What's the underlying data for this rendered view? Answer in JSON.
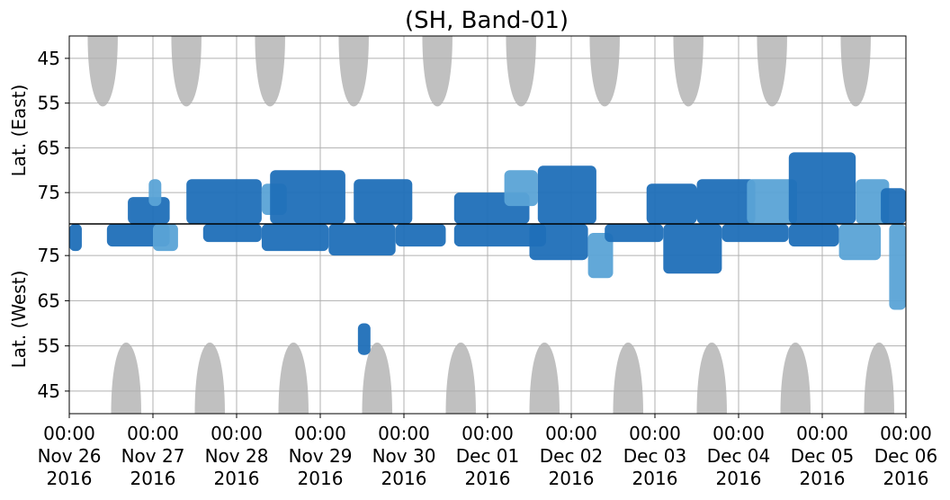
{
  "chart_data": {
    "type": "heatmap",
    "title": "(SH, Band-01)",
    "y_panels": [
      {
        "label": "Lat. (East)",
        "ticks": [
          45,
          55,
          65,
          75
        ],
        "range_deg": [
          40,
          82
        ]
      },
      {
        "label": "Lat. (West)",
        "ticks": [
          75,
          65,
          55,
          45
        ],
        "range_deg": [
          82,
          40
        ]
      }
    ],
    "x_ticks": [
      {
        "time": "00:00",
        "date": "Nov 26",
        "year": "2016"
      },
      {
        "time": "00:00",
        "date": "Nov 27",
        "year": "2016"
      },
      {
        "time": "00:00",
        "date": "Nov 28",
        "year": "2016"
      },
      {
        "time": "00:00",
        "date": "Nov 29",
        "year": "2016"
      },
      {
        "time": "00:00",
        "date": "Nov 30",
        "year": "2016"
      },
      {
        "time": "00:00",
        "date": "Dec 01",
        "year": "2016"
      },
      {
        "time": "00:00",
        "date": "Dec 02",
        "year": "2016"
      },
      {
        "time": "00:00",
        "date": "Dec 03",
        "year": "2016"
      },
      {
        "time": "00:00",
        "date": "Dec 04",
        "year": "2016"
      },
      {
        "time": "00:00",
        "date": "Dec 05",
        "year": "2016"
      },
      {
        "time": "00:00",
        "date": "Dec 06",
        "year": "2016"
      }
    ],
    "x_range": [
      "2016-11-26 00:00",
      "2016-12-06 00:00"
    ],
    "grid": true,
    "colors": {
      "strong": "#1f6fb8",
      "weak": "#5aa3d6",
      "no_coverage": "#c0c0c0",
      "grid": "#b0b0b0"
    },
    "no_coverage_regions": {
      "east": [
        {
          "center_day": 0.4,
          "half_width_day": 0.18,
          "min_lat": 61
        },
        {
          "center_day": 1.4,
          "half_width_day": 0.18,
          "min_lat": 61
        },
        {
          "center_day": 2.4,
          "half_width_day": 0.18,
          "min_lat": 61
        },
        {
          "center_day": 3.4,
          "half_width_day": 0.18,
          "min_lat": 61
        },
        {
          "center_day": 4.4,
          "half_width_day": 0.18,
          "min_lat": 61
        },
        {
          "center_day": 5.4,
          "half_width_day": 0.18,
          "min_lat": 61
        },
        {
          "center_day": 6.4,
          "half_width_day": 0.18,
          "min_lat": 61
        },
        {
          "center_day": 7.4,
          "half_width_day": 0.18,
          "min_lat": 61
        },
        {
          "center_day": 8.4,
          "half_width_day": 0.18,
          "min_lat": 61
        },
        {
          "center_day": 9.4,
          "half_width_day": 0.18,
          "min_lat": 61
        }
      ],
      "west": [
        {
          "center_day": 0.68,
          "half_width_day": 0.18,
          "min_lat": 61
        },
        {
          "center_day": 1.68,
          "half_width_day": 0.18,
          "min_lat": 61
        },
        {
          "center_day": 2.68,
          "half_width_day": 0.18,
          "min_lat": 61
        },
        {
          "center_day": 3.68,
          "half_width_day": 0.18,
          "min_lat": 61
        },
        {
          "center_day": 4.68,
          "half_width_day": 0.18,
          "min_lat": 61
        },
        {
          "center_day": 5.68,
          "half_width_day": 0.18,
          "min_lat": 61
        },
        {
          "center_day": 6.68,
          "half_width_day": 0.18,
          "min_lat": 61
        },
        {
          "center_day": 7.68,
          "half_width_day": 0.18,
          "min_lat": 61
        },
        {
          "center_day": 8.68,
          "half_width_day": 0.18,
          "min_lat": 61
        },
        {
          "center_day": 9.68,
          "half_width_day": 0.18,
          "min_lat": 61
        }
      ]
    },
    "echo_blobs": [
      {
        "panel": "east",
        "day_start": 0.7,
        "day_end": 1.2,
        "lat_min": 76,
        "lat_max": 82,
        "level": "strong"
      },
      {
        "panel": "east",
        "day_start": 0.95,
        "day_end": 1.1,
        "lat_min": 72,
        "lat_max": 78,
        "level": "weak"
      },
      {
        "panel": "east",
        "day_start": 1.4,
        "day_end": 2.3,
        "lat_min": 72,
        "lat_max": 82,
        "level": "strong"
      },
      {
        "panel": "east",
        "day_start": 2.3,
        "day_end": 2.6,
        "lat_min": 73,
        "lat_max": 80,
        "level": "weak"
      },
      {
        "panel": "east",
        "day_start": 2.4,
        "day_end": 3.3,
        "lat_min": 70,
        "lat_max": 82,
        "level": "strong"
      },
      {
        "panel": "east",
        "day_start": 3.4,
        "day_end": 4.1,
        "lat_min": 72,
        "lat_max": 82,
        "level": "strong"
      },
      {
        "panel": "east",
        "day_start": 4.6,
        "day_end": 5.5,
        "lat_min": 75,
        "lat_max": 82,
        "level": "strong"
      },
      {
        "panel": "east",
        "day_start": 5.2,
        "day_end": 5.6,
        "lat_min": 70,
        "lat_max": 78,
        "level": "weak"
      },
      {
        "panel": "east",
        "day_start": 5.6,
        "day_end": 6.3,
        "lat_min": 69,
        "lat_max": 82,
        "level": "strong"
      },
      {
        "panel": "east",
        "day_start": 6.9,
        "day_end": 7.5,
        "lat_min": 73,
        "lat_max": 82,
        "level": "strong"
      },
      {
        "panel": "east",
        "day_start": 7.5,
        "day_end": 8.2,
        "lat_min": 72,
        "lat_max": 82,
        "level": "strong"
      },
      {
        "panel": "east",
        "day_start": 8.1,
        "day_end": 8.7,
        "lat_min": 72,
        "lat_max": 82,
        "level": "weak"
      },
      {
        "panel": "east",
        "day_start": 8.6,
        "day_end": 9.4,
        "lat_min": 66,
        "lat_max": 82,
        "level": "strong"
      },
      {
        "panel": "east",
        "day_start": 9.4,
        "day_end": 9.8,
        "lat_min": 72,
        "lat_max": 82,
        "level": "weak"
      },
      {
        "panel": "east",
        "day_start": 9.7,
        "day_end": 10.0,
        "lat_min": 74,
        "lat_max": 82,
        "level": "strong"
      },
      {
        "panel": "west",
        "day_start": 0.0,
        "day_end": 0.15,
        "lat_min": 76,
        "lat_max": 82,
        "level": "strong"
      },
      {
        "panel": "west",
        "day_start": 0.45,
        "day_end": 1.2,
        "lat_min": 77,
        "lat_max": 82,
        "level": "strong"
      },
      {
        "panel": "west",
        "day_start": 1.0,
        "day_end": 1.3,
        "lat_min": 76,
        "lat_max": 82,
        "level": "weak"
      },
      {
        "panel": "west",
        "day_start": 1.6,
        "day_end": 2.3,
        "lat_min": 78,
        "lat_max": 82,
        "level": "strong"
      },
      {
        "panel": "west",
        "day_start": 2.3,
        "day_end": 3.1,
        "lat_min": 76,
        "lat_max": 82,
        "level": "strong"
      },
      {
        "panel": "west",
        "day_start": 3.1,
        "day_end": 3.9,
        "lat_min": 75,
        "lat_max": 82,
        "level": "strong"
      },
      {
        "panel": "west",
        "day_start": 3.45,
        "day_end": 3.6,
        "lat_min": 53,
        "lat_max": 60,
        "level": "strong"
      },
      {
        "panel": "west",
        "day_start": 3.9,
        "day_end": 4.5,
        "lat_min": 77,
        "lat_max": 82,
        "level": "strong"
      },
      {
        "panel": "west",
        "day_start": 4.6,
        "day_end": 5.7,
        "lat_min": 77,
        "lat_max": 82,
        "level": "strong"
      },
      {
        "panel": "west",
        "day_start": 5.5,
        "day_end": 6.2,
        "lat_min": 74,
        "lat_max": 82,
        "level": "strong"
      },
      {
        "panel": "west",
        "day_start": 6.2,
        "day_end": 6.5,
        "lat_min": 70,
        "lat_max": 80,
        "level": "weak"
      },
      {
        "panel": "west",
        "day_start": 6.4,
        "day_end": 7.1,
        "lat_min": 78,
        "lat_max": 82,
        "level": "strong"
      },
      {
        "panel": "west",
        "day_start": 7.1,
        "day_end": 7.8,
        "lat_min": 71,
        "lat_max": 82,
        "level": "strong"
      },
      {
        "panel": "west",
        "day_start": 7.8,
        "day_end": 8.6,
        "lat_min": 78,
        "lat_max": 82,
        "level": "strong"
      },
      {
        "panel": "west",
        "day_start": 8.6,
        "day_end": 9.2,
        "lat_min": 77,
        "lat_max": 82,
        "level": "strong"
      },
      {
        "panel": "west",
        "day_start": 9.2,
        "day_end": 9.7,
        "lat_min": 74,
        "lat_max": 82,
        "level": "weak"
      },
      {
        "panel": "west",
        "day_start": 9.8,
        "day_end": 10.0,
        "lat_min": 63,
        "lat_max": 82,
        "level": "weak"
      }
    ]
  }
}
